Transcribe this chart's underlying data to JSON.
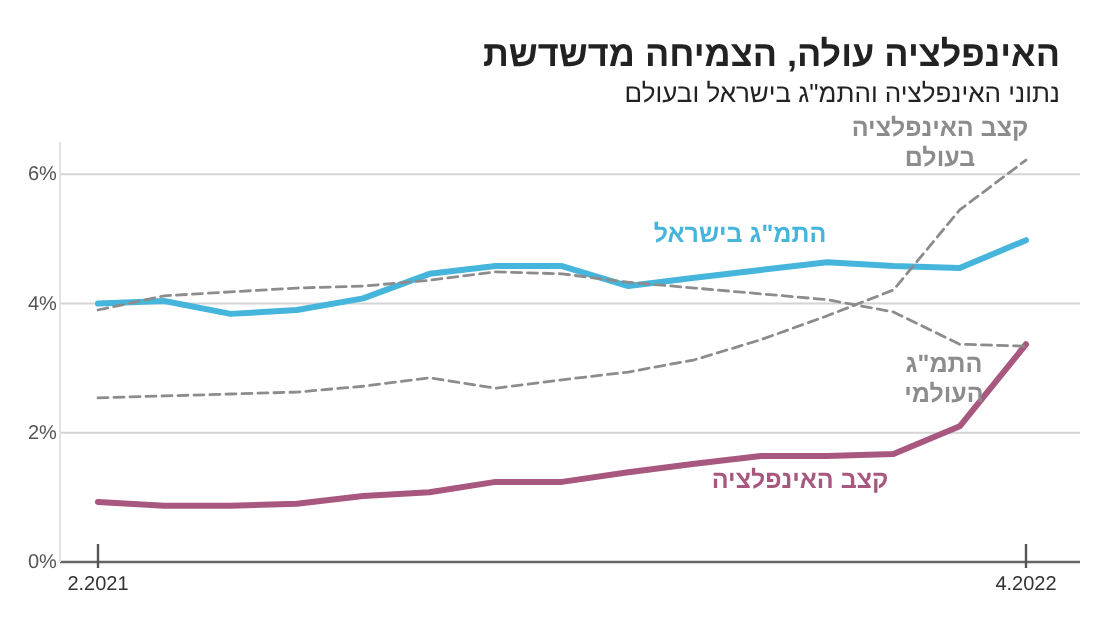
{
  "chart_data": {
    "type": "line",
    "title": "האינפלציה עולה, הצמיחה מדשדשת",
    "subtitle": "נתוני האינפלציה והתמ\"ג בישראל ובעולם",
    "categories": [
      "2.2021",
      null,
      null,
      null,
      null,
      null,
      null,
      null,
      null,
      null,
      null,
      null,
      null,
      null,
      "4.2022"
    ],
    "ylim": [
      0,
      6.5
    ],
    "yticks": [
      {
        "value": 0,
        "label": "0%"
      },
      {
        "value": 2,
        "label": "2%"
      },
      {
        "value": 4,
        "label": "4%"
      },
      {
        "value": 6,
        "label": "6%"
      }
    ],
    "grid": "y",
    "legend": false,
    "series": [
      {
        "name": "התמ\"ג בישראל",
        "color": "#45b5dc",
        "line_style": "solid",
        "values": [
          4.0,
          4.04,
          3.84,
          3.9,
          4.08,
          4.46,
          4.58,
          4.58,
          4.27,
          4.4,
          4.52,
          4.64,
          4.58,
          4.55,
          4.98
        ]
      },
      {
        "name": "קצב האינפלציה",
        "color": "#a8577e",
        "line_style": "solid",
        "values": [
          0.93,
          0.87,
          0.87,
          0.9,
          1.02,
          1.08,
          1.24,
          1.24,
          1.39,
          1.52,
          1.64,
          1.64,
          1.67,
          2.1,
          3.37
        ]
      },
      {
        "name": "התמ\"ג העולמי",
        "color": "#8c8c8c",
        "line_style": "dashed",
        "values": [
          3.9,
          4.12,
          4.18,
          4.24,
          4.27,
          4.36,
          4.49,
          4.46,
          4.33,
          4.24,
          4.15,
          4.06,
          3.87,
          3.37,
          3.34
        ]
      },
      {
        "name": "קצב האינפלציה בעולם",
        "color": "#8c8c8c",
        "line_style": "dashed",
        "values": [
          2.54,
          2.57,
          2.6,
          2.63,
          2.72,
          2.85,
          2.69,
          2.82,
          2.94,
          3.13,
          3.44,
          3.81,
          4.21,
          5.45,
          6.22
        ]
      }
    ]
  }
}
